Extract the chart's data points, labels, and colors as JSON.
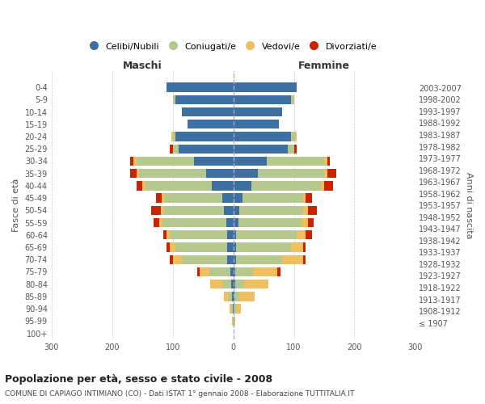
{
  "age_groups": [
    "100+",
    "95-99",
    "90-94",
    "85-89",
    "80-84",
    "75-79",
    "70-74",
    "65-69",
    "60-64",
    "55-59",
    "50-54",
    "45-49",
    "40-44",
    "35-39",
    "30-34",
    "25-29",
    "20-24",
    "15-19",
    "10-14",
    "5-9",
    "0-4"
  ],
  "birth_years": [
    "≤ 1907",
    "1908-1912",
    "1913-1917",
    "1918-1922",
    "1923-1927",
    "1928-1932",
    "1933-1937",
    "1938-1942",
    "1943-1947",
    "1948-1952",
    "1953-1957",
    "1958-1962",
    "1963-1967",
    "1968-1972",
    "1973-1977",
    "1978-1982",
    "1983-1987",
    "1988-1992",
    "1993-1997",
    "1998-2002",
    "2003-2007"
  ],
  "male_celibi": [
    0,
    0,
    1,
    2,
    3,
    5,
    10,
    10,
    10,
    12,
    15,
    18,
    35,
    45,
    65,
    90,
    95,
    75,
    85,
    95,
    110
  ],
  "male_coniugati": [
    0,
    1,
    2,
    5,
    15,
    35,
    75,
    85,
    95,
    105,
    100,
    95,
    110,
    110,
    95,
    10,
    5,
    0,
    0,
    5,
    0
  ],
  "male_vedovi": [
    0,
    1,
    3,
    8,
    20,
    15,
    15,
    10,
    5,
    5,
    5,
    5,
    5,
    5,
    5,
    0,
    2,
    0,
    0,
    0,
    0
  ],
  "male_divorziati": [
    0,
    0,
    0,
    0,
    0,
    5,
    5,
    5,
    5,
    10,
    15,
    10,
    10,
    10,
    5,
    5,
    0,
    0,
    0,
    0,
    0
  ],
  "female_celibi": [
    0,
    0,
    1,
    2,
    3,
    3,
    5,
    5,
    5,
    8,
    10,
    15,
    30,
    40,
    55,
    90,
    95,
    75,
    80,
    95,
    105
  ],
  "female_coniugati": [
    0,
    1,
    3,
    8,
    15,
    30,
    75,
    90,
    100,
    105,
    105,
    100,
    115,
    110,
    95,
    10,
    8,
    0,
    0,
    5,
    0
  ],
  "female_vedovi": [
    1,
    2,
    8,
    25,
    40,
    40,
    35,
    20,
    15,
    10,
    8,
    5,
    5,
    5,
    5,
    0,
    2,
    0,
    0,
    0,
    0
  ],
  "female_divorziati": [
    0,
    0,
    0,
    0,
    0,
    5,
    5,
    5,
    10,
    10,
    15,
    10,
    15,
    15,
    5,
    5,
    0,
    0,
    0,
    0,
    0
  ],
  "color_celibi": "#3d6fa0",
  "color_coniugati": "#b5c98e",
  "color_vedovi": "#f0c060",
  "color_divorziati": "#cc2200",
  "title_main": "Popolazione per età, sesso e stato civile - 2008",
  "title_sub": "COMUNE DI CAPIAGO INTIMIANO (CO) - Dati ISTAT 1° gennaio 2008 - Elaborazione TUTTITALIA.IT",
  "ylabel_left": "Fasce di età",
  "ylabel_right": "Anni di nascita",
  "xlabel_left": "Maschi",
  "xlabel_right": "Femmine",
  "xlim": 300,
  "bg_color": "#ffffff",
  "grid_color": "#cccccc",
  "legend_labels": [
    "Celibi/Nubili",
    "Coniugati/e",
    "Vedovi/e",
    "Divorziati/e"
  ]
}
